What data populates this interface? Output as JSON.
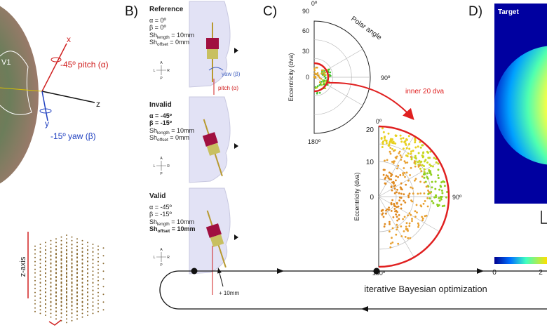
{
  "panel_a": {
    "region_label": "V1",
    "x_axis": "x",
    "z_axis": "z",
    "y_axis": "y",
    "pitch": "-45º pitch (α)",
    "yaw": "-15º yaw (β)",
    "grid_axis": "z-axis"
  },
  "panel_b": {
    "label": "B)",
    "compass": {
      "a": "A",
      "l": "L",
      "r": "R",
      "p": "P"
    },
    "yaw_label": "yaw (β)",
    "pitch_label": "pitch (α)",
    "shift": "+ 10mm",
    "rows": [
      {
        "title": "Reference",
        "alpha": "α = 0º",
        "beta": "β = 0º",
        "sh_length": {
          "base": "Sh",
          "sub": "length",
          "rest": " = 10mm"
        },
        "sh_offset": {
          "base": "Sh",
          "sub": "offset",
          "rest": " = 0mm"
        }
      },
      {
        "title": "Invalid",
        "alpha": "α = -45º",
        "beta": "β = -15º",
        "sh_length": {
          "base": "Sh",
          "sub": "length",
          "rest": " = 10mm"
        },
        "sh_offset": {
          "base": "Sh",
          "sub": "offset",
          "rest": " = 0mm"
        }
      },
      {
        "title": "Valid",
        "alpha": "α = -45º",
        "beta": "β = -15º",
        "sh_length": {
          "base": "Sh",
          "sub": "length",
          "rest": " = 10mm"
        },
        "sh_offset": {
          "base": "Sh",
          "sub": "offset",
          "rest": " = 10mm"
        }
      }
    ]
  },
  "panel_c": {
    "label": "C)",
    "annotation": "inner 20 dva",
    "top": {
      "angle_0": "0º",
      "angle_90": "90º",
      "angle_180": "180º",
      "ticks": [
        "90",
        "60",
        "30",
        "0"
      ],
      "angle_title": "Polar angle",
      "y_title": "Eccentricity (dva)"
    },
    "bottom": {
      "angle_0": "0º",
      "angle_90": "90º",
      "angle_180": "180º",
      "ticks": [
        "20",
        "10",
        "0"
      ],
      "y_title": "Eccentricity (dva)"
    }
  },
  "panel_d": {
    "label": "D)",
    "title": "Target",
    "colorbar_ticks": [
      "0",
      "2"
    ]
  },
  "loop": {
    "label": "iterative Bayesian optimization"
  }
}
